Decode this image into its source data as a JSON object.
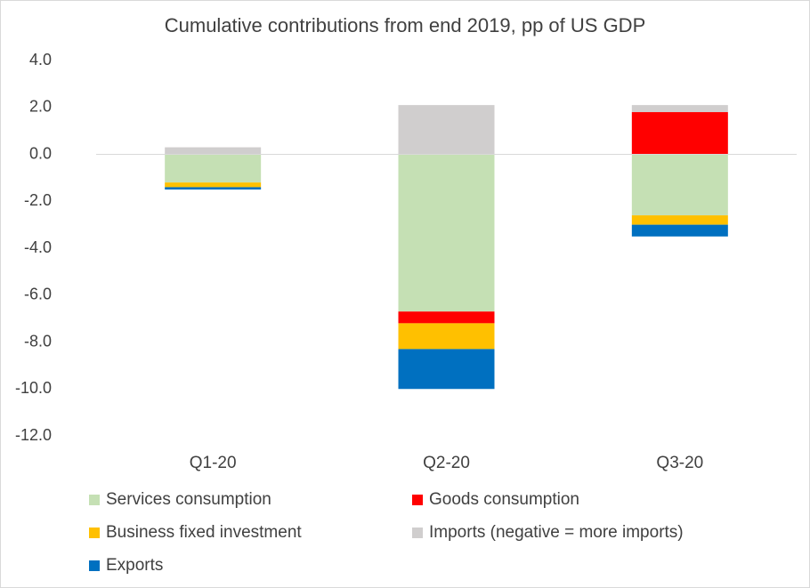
{
  "chart_data": {
    "type": "bar",
    "stacked": true,
    "title": "Cumulative contributions from end 2019, pp of US GDP",
    "categories": [
      "Q1-20",
      "Q2-20",
      "Q3-20"
    ],
    "series": [
      {
        "name": "Services consumption",
        "color": "#c5e0b4",
        "values": [
          -1.2,
          -6.7,
          -2.6
        ]
      },
      {
        "name": "Goods consumption",
        "color": "#ff0000",
        "values": [
          0,
          -0.5,
          1.8
        ]
      },
      {
        "name": "Business fixed investment",
        "color": "#ffc000",
        "values": [
          -0.2,
          -1.1,
          -0.4
        ]
      },
      {
        "name": "Imports (negative = more imports)",
        "color": "#d0cece",
        "values": [
          0.3,
          2.1,
          0.3
        ]
      },
      {
        "name": "Exports",
        "color": "#0070c0",
        "values": [
          -0.1,
          -1.7,
          -0.5
        ]
      }
    ],
    "ylim": [
      -12,
      4
    ],
    "yticks": [
      {
        "value": -12,
        "label": "-12.0"
      },
      {
        "value": -10,
        "label": "-10.0"
      },
      {
        "value": -8,
        "label": "-8.0"
      },
      {
        "value": -6,
        "label": "-6.0"
      },
      {
        "value": -4,
        "label": "-4.0"
      },
      {
        "value": -2,
        "label": "-2.0"
      },
      {
        "value": 0,
        "label": "0.0"
      },
      {
        "value": 2,
        "label": "2.0"
      },
      {
        "value": 4,
        "label": "4.0"
      }
    ],
    "grid": false
  }
}
